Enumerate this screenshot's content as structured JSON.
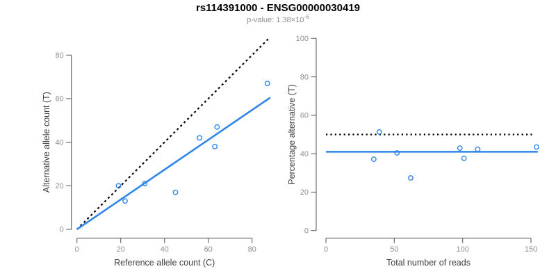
{
  "header": {
    "title": "rs114391000 - ENSG00000030419",
    "subtitle_prefix": "p-value: 1.38×10",
    "subtitle_exponent": "-6"
  },
  "colors": {
    "accent_blue": "#2E86E8",
    "reference_black": "#000000",
    "axis_line_gray": "#5F5F5F",
    "tick_label_gray": "#8F8F8F",
    "axis_title_gray": "#3F3F3F"
  },
  "chart_data": [
    {
      "name": "allele-counts",
      "type": "scatter",
      "xlabel": "Reference allele count (C)",
      "ylabel": "Alternative allele count (T)",
      "xlim": [
        0,
        88
      ],
      "ylim": [
        0,
        88
      ],
      "xticks": [
        0,
        20,
        40,
        60,
        80
      ],
      "yticks": [
        0,
        20,
        40,
        60,
        80
      ],
      "grid": false,
      "legend": "none",
      "points": [
        [
          19,
          20
        ],
        [
          22,
          13
        ],
        [
          31,
          21
        ],
        [
          45,
          17
        ],
        [
          56,
          42
        ],
        [
          63,
          38
        ],
        [
          64,
          47
        ],
        [
          87,
          67
        ]
      ],
      "lines": [
        {
          "name": "identity-line",
          "style": "dashed",
          "color": "#000000",
          "x": [
            0,
            87.5
          ],
          "y": [
            0,
            87.5
          ]
        },
        {
          "name": "fit-line",
          "style": "solid",
          "color": "#2E86E8",
          "x": [
            0,
            88.3
          ],
          "y": [
            0,
            60.5
          ]
        }
      ]
    },
    {
      "name": "percentage-alternative",
      "type": "scatter",
      "xlabel": "Total number of reads",
      "ylabel": "Percentage alternative (T)",
      "xlim": [
        0,
        155
      ],
      "ylim": [
        0,
        100
      ],
      "xticks": [
        0,
        50,
        100,
        150
      ],
      "yticks": [
        0,
        20,
        40,
        60,
        80,
        100
      ],
      "grid": false,
      "legend": "none",
      "points": [
        [
          39,
          51.3
        ],
        [
          35,
          37.1
        ],
        [
          52,
          40.4
        ],
        [
          62,
          27.4
        ],
        [
          98,
          42.9
        ],
        [
          101,
          37.6
        ],
        [
          111,
          42.3
        ],
        [
          154,
          43.5
        ]
      ],
      "lines": [
        {
          "name": "null-50pct-line",
          "style": "dotted",
          "color": "#000000",
          "x": [
            0,
            152
          ],
          "y": [
            50,
            50
          ]
        },
        {
          "name": "mean-line",
          "style": "solid",
          "color": "#2E86E8",
          "x": [
            0,
            155
          ],
          "y": [
            41,
            41
          ]
        }
      ]
    }
  ]
}
